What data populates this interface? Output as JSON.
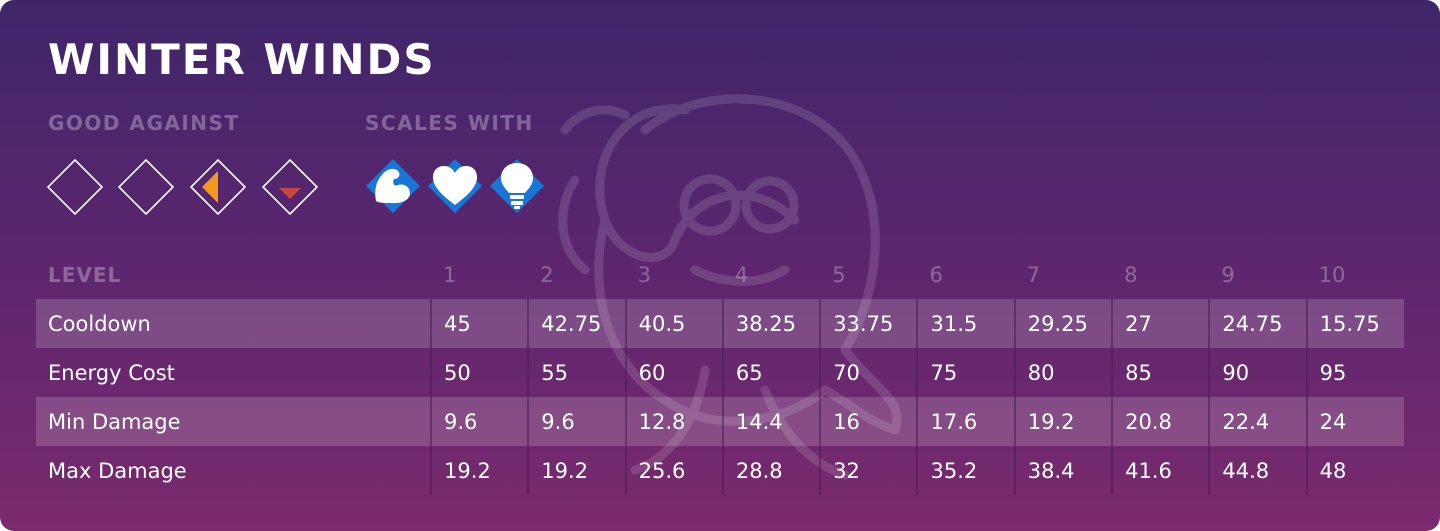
{
  "ability": {
    "title": "WINTER WINDS"
  },
  "good_against": {
    "label": "GOOD AGAINST",
    "items": [
      {
        "icon": "empty-diamond-icon"
      },
      {
        "icon": "empty-diamond-icon"
      },
      {
        "icon": "orange-half-diamond-icon",
        "color": "#f39a1e"
      },
      {
        "icon": "red-corner-diamond-icon",
        "color": "#c9473a"
      }
    ]
  },
  "scales_with": {
    "label": "SCALES WITH",
    "items": [
      {
        "icon": "strength-bicep-icon",
        "color": "#1877d6"
      },
      {
        "icon": "vitality-heart-icon",
        "color": "#1877d6"
      },
      {
        "icon": "intellect-lightbulb-icon",
        "color": "#1877d6"
      }
    ]
  },
  "table": {
    "header_label": "LEVEL",
    "levels": [
      "1",
      "2",
      "3",
      "4",
      "5",
      "6",
      "7",
      "8",
      "9",
      "10"
    ],
    "rows": [
      {
        "name": "Cooldown",
        "values": [
          "45",
          "42.75",
          "40.5",
          "38.25",
          "33.75",
          "31.5",
          "29.25",
          "27",
          "24.75",
          "15.75"
        ]
      },
      {
        "name": "Energy Cost",
        "values": [
          "50",
          "55",
          "60",
          "65",
          "70",
          "75",
          "80",
          "85",
          "90",
          "95"
        ]
      },
      {
        "name": "Min Damage",
        "values": [
          "9.6",
          "9.6",
          "12.8",
          "14.4",
          "16",
          "17.6",
          "19.2",
          "20.8",
          "22.4",
          "24"
        ]
      },
      {
        "name": "Max Damage",
        "values": [
          "19.2",
          "19.2",
          "25.6",
          "28.8",
          "32",
          "35.2",
          "38.4",
          "41.6",
          "44.8",
          "48"
        ]
      }
    ]
  },
  "colors": {
    "background_top": "#3e2569",
    "background_bottom": "#7a2a6d",
    "stat_icon_blue": "#1877d6"
  }
}
